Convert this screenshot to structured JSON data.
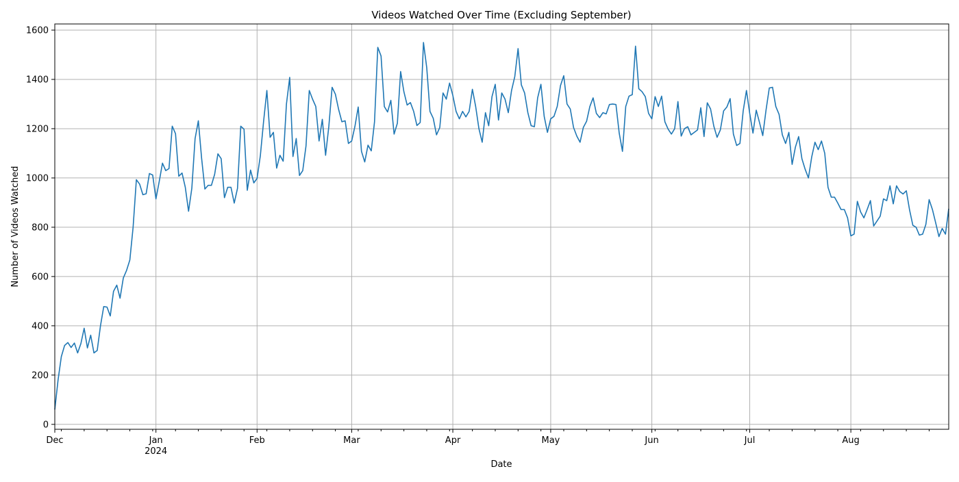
{
  "chart_data": {
    "type": "line",
    "title": "Videos Watched Over Time (Excluding September)",
    "xlabel": "Date",
    "ylabel": "Number of Videos Watched",
    "ylim": [
      -20,
      1625
    ],
    "xlim": [
      "2023-12-01",
      "2024-08-31"
    ],
    "grid": true,
    "line_color": "#1f77b4",
    "y_ticks": [
      0,
      200,
      400,
      600,
      800,
      1000,
      1200,
      1400,
      1600
    ],
    "x_ticks": [
      {
        "date": "2023-12-01",
        "label": "Dec",
        "sublabel": ""
      },
      {
        "date": "2024-01-01",
        "label": "Jan",
        "sublabel": "2024"
      },
      {
        "date": "2024-02-01",
        "label": "Feb",
        "sublabel": ""
      },
      {
        "date": "2024-03-01",
        "label": "Mar",
        "sublabel": ""
      },
      {
        "date": "2024-04-01",
        "label": "Apr",
        "sublabel": ""
      },
      {
        "date": "2024-05-01",
        "label": "May",
        "sublabel": ""
      },
      {
        "date": "2024-06-01",
        "label": "Jun",
        "sublabel": ""
      },
      {
        "date": "2024-07-01",
        "label": "Jul",
        "sublabel": ""
      },
      {
        "date": "2024-08-01",
        "label": "Aug",
        "sublabel": ""
      }
    ],
    "series": [
      {
        "start_date": "2023-12-01",
        "values": [
          60,
          180,
          275,
          320,
          332,
          312,
          330,
          290,
          328,
          390,
          310,
          362,
          290,
          300,
          400,
          478,
          476,
          440,
          540,
          565,
          512,
          594,
          625,
          667,
          800,
          993,
          975,
          932,
          936,
          1018,
          1012,
          915,
          985,
          1060,
          1030,
          1038,
          1210,
          1180,
          1007,
          1020,
          962,
          865,
          958,
          1160,
          1232,
          1080,
          955,
          970,
          970,
          1015,
          1098,
          1078,
          920,
          962,
          962,
          898,
          958,
          1210,
          1198,
          950,
          1032,
          980,
          998,
          1090,
          1230,
          1355,
          1165,
          1185,
          1040,
          1092,
          1068,
          1300,
          1408,
          1087,
          1160,
          1010,
          1030,
          1130,
          1355,
          1320,
          1290,
          1150,
          1238,
          1092,
          1210,
          1368,
          1340,
          1278,
          1228,
          1232,
          1140,
          1150,
          1210,
          1288,
          1108,
          1065,
          1133,
          1110,
          1228,
          1530,
          1495,
          1290,
          1268,
          1315,
          1178,
          1222,
          1432,
          1350,
          1296,
          1306,
          1270,
          1213,
          1225,
          1550,
          1448,
          1270,
          1242,
          1175,
          1205,
          1345,
          1320,
          1385,
          1335,
          1270,
          1240,
          1270,
          1248,
          1270,
          1360,
          1290,
          1200,
          1145,
          1265,
          1212,
          1330,
          1380,
          1235,
          1345,
          1320,
          1265,
          1355,
          1412,
          1525,
          1378,
          1345,
          1265,
          1212,
          1208,
          1325,
          1380,
          1250,
          1185,
          1240,
          1250,
          1290,
          1375,
          1415,
          1300,
          1280,
          1205,
          1170,
          1145,
          1205,
          1230,
          1290,
          1325,
          1262,
          1245,
          1265,
          1260,
          1298,
          1300,
          1298,
          1182,
          1108,
          1290,
          1332,
          1338,
          1535,
          1362,
          1350,
          1330,
          1262,
          1240,
          1330,
          1290,
          1332,
          1228,
          1198,
          1178,
          1200,
          1310,
          1170,
          1200,
          1208,
          1175,
          1185,
          1195,
          1285,
          1168,
          1305,
          1280,
          1210,
          1165,
          1195,
          1272,
          1288,
          1322,
          1178,
          1132,
          1140,
          1272,
          1355,
          1262,
          1182,
          1275,
          1225,
          1172,
          1275,
          1365,
          1368,
          1290,
          1258,
          1175,
          1140,
          1185,
          1055,
          1125,
          1168,
          1078,
          1035,
          1000,
          1085,
          1145,
          1115,
          1150,
          1100,
          962,
          922,
          922,
          898,
          872,
          872,
          838,
          765,
          772,
          905,
          862,
          838,
          872,
          908,
          805,
          825,
          845,
          915,
          908,
          968,
          895,
          968,
          945,
          935,
          948,
          870,
          808,
          800,
          768,
          772,
          812,
          912,
          872,
          818,
          762,
          795,
          772,
          875
        ]
      }
    ]
  }
}
